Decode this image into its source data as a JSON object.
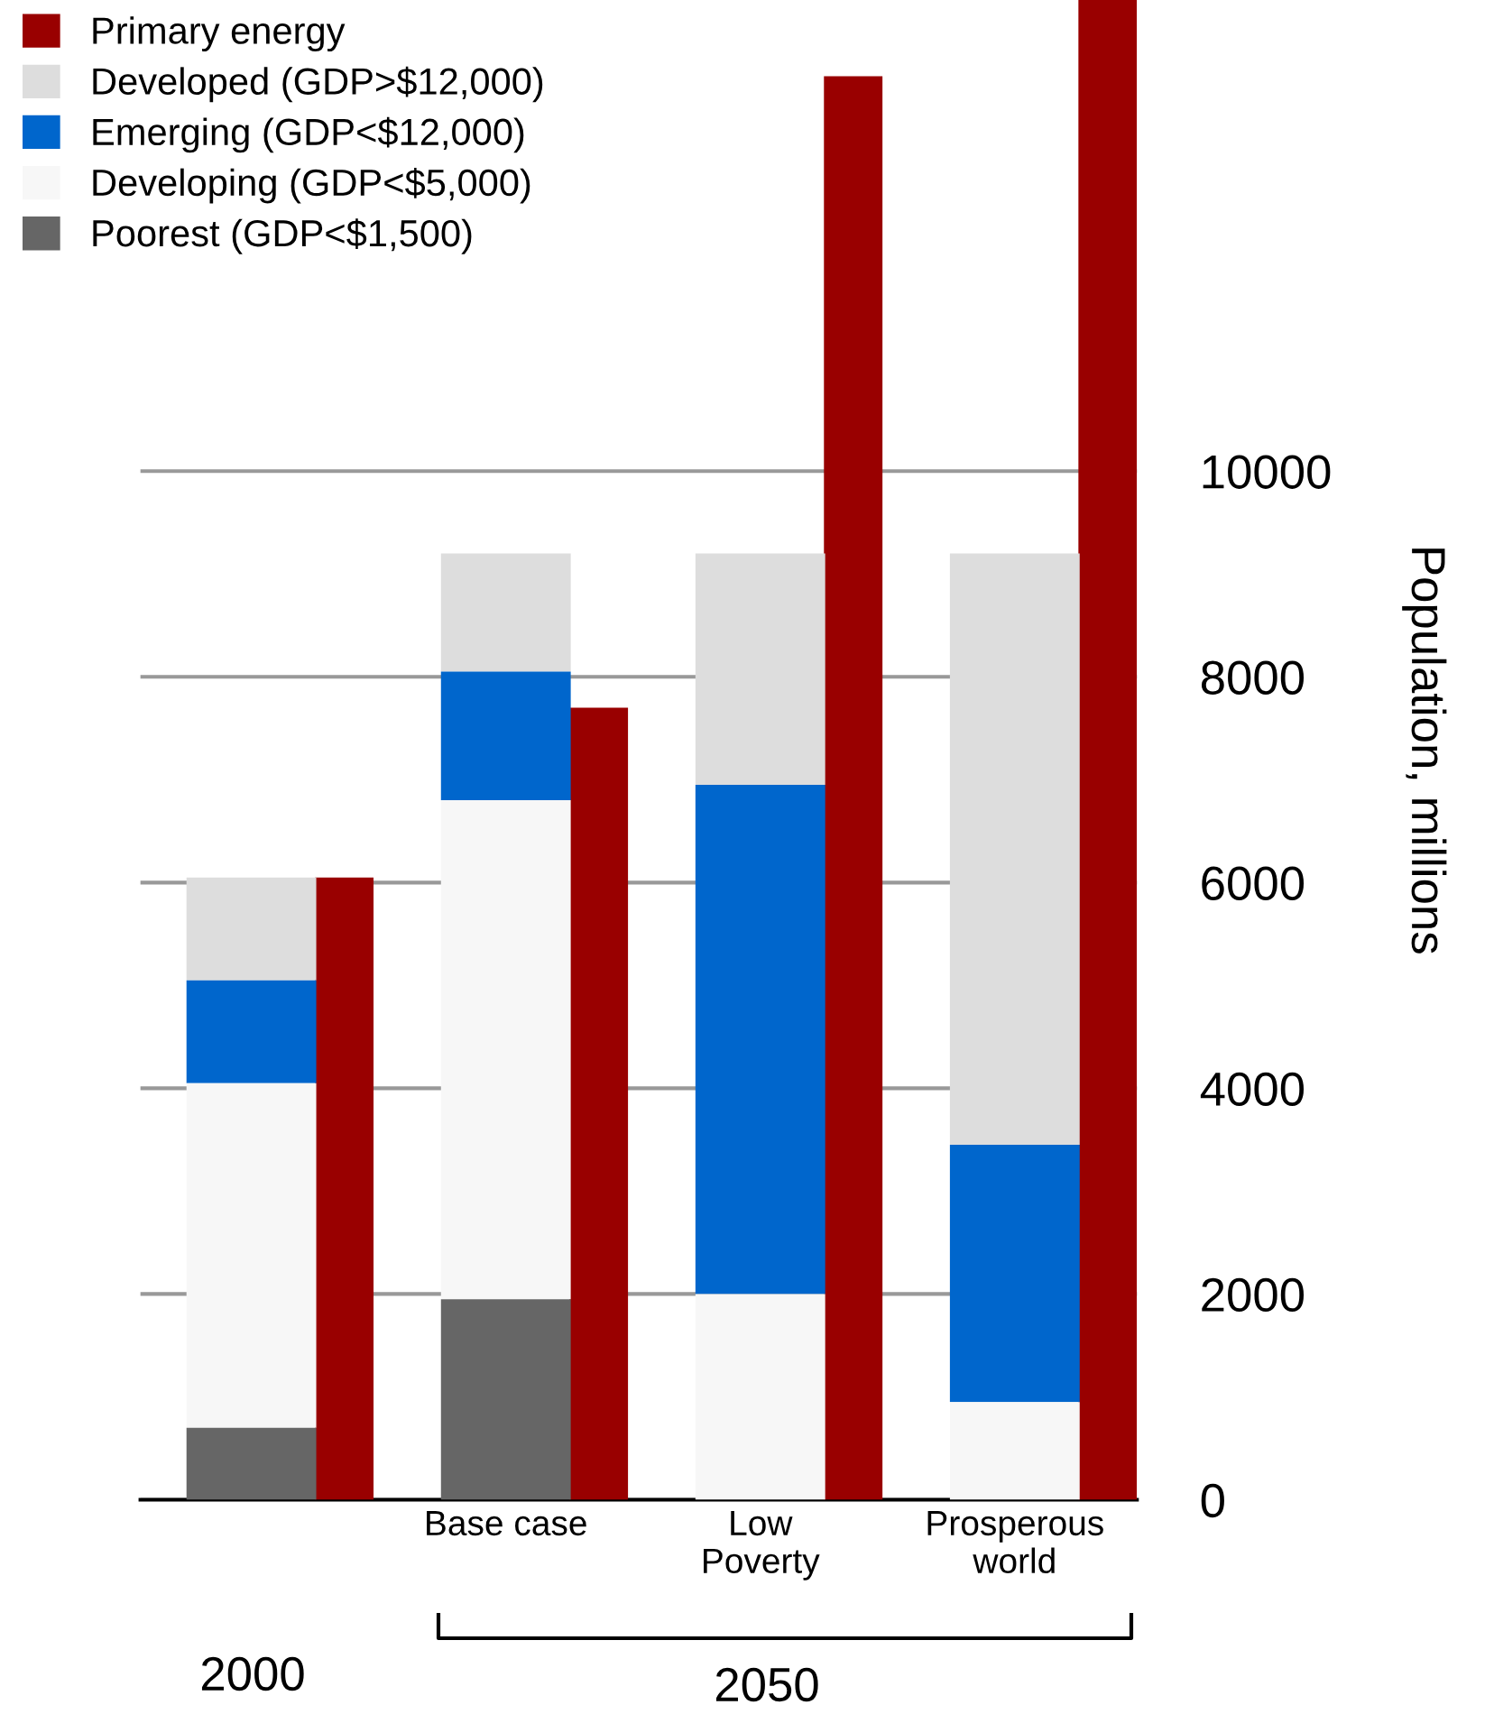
{
  "chart_data": {
    "type": "bar",
    "categories": [
      null,
      "Base case",
      "Low\nPoverty",
      "Prosperous\nworld"
    ],
    "series": [
      {
        "name": "Primary energy",
        "type": "bar",
        "color": "#990000",
        "values": [
          6050,
          7700,
          13840,
          14580
        ]
      },
      {
        "name": "Developed (GDP>$12,000)",
        "color": "#dddddd",
        "values": [
          1000,
          1150,
          2250,
          5750
        ],
        "base": [
          5050,
          8050,
          6950,
          3450
        ]
      },
      {
        "name": "Emerging (GDP<$12,000)",
        "color": "#0066cc",
        "values": [
          1000,
          1250,
          4950,
          2500
        ],
        "base": [
          4050,
          6800,
          2000,
          950
        ]
      },
      {
        "name": "Developing (GDP<$5,000)",
        "color": "#f7f7f7",
        "values": [
          3350,
          4850,
          2000,
          950
        ],
        "base": [
          700,
          1950,
          0,
          0
        ]
      },
      {
        "name": "Poorest (GDP<$1,500)",
        "color": "#666666",
        "values": [
          700,
          1950,
          null,
          null
        ]
      }
    ],
    "ylabel": "Population, millions",
    "ylim": [
      0,
      14580
    ],
    "yticks": [
      0,
      2000,
      4000,
      6000,
      8000,
      10000
    ],
    "grid": "y",
    "legend": "top left",
    "annotations": [
      "2000",
      "2050"
    ]
  }
}
